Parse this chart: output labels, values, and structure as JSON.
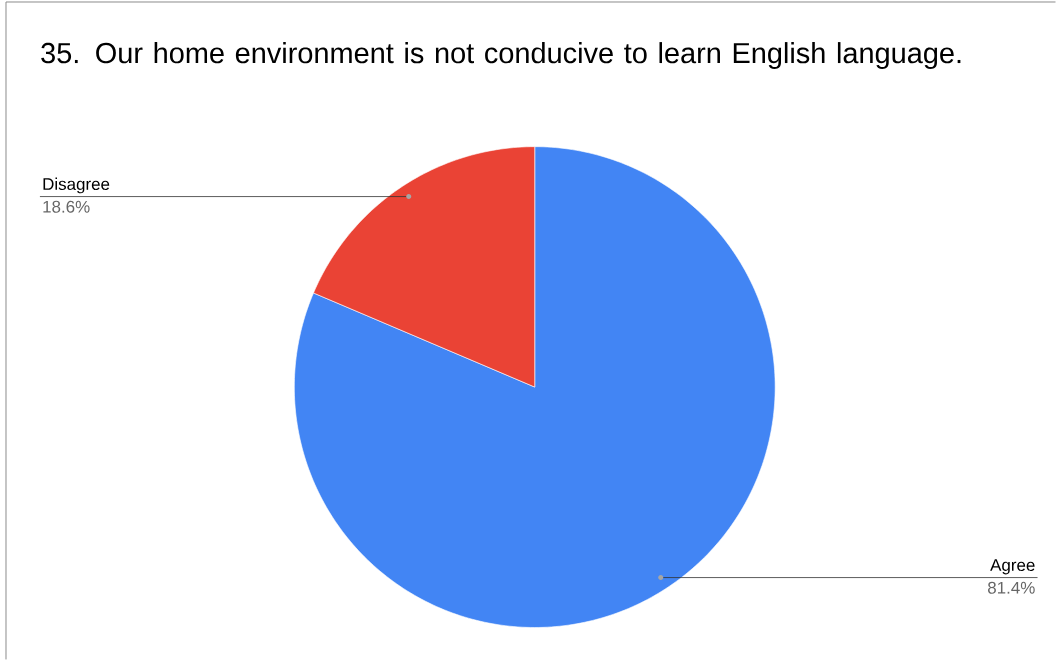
{
  "chart_data": {
    "type": "pie",
    "title": "35. Our home environment is not conducive to learn English language.",
    "categories": [
      "Agree",
      "Disagree"
    ],
    "values": [
      81.4,
      18.6
    ],
    "value_labels": [
      "81.4%",
      "18.6%"
    ],
    "colors": [
      "#4285f4",
      "#ea4335"
    ]
  }
}
